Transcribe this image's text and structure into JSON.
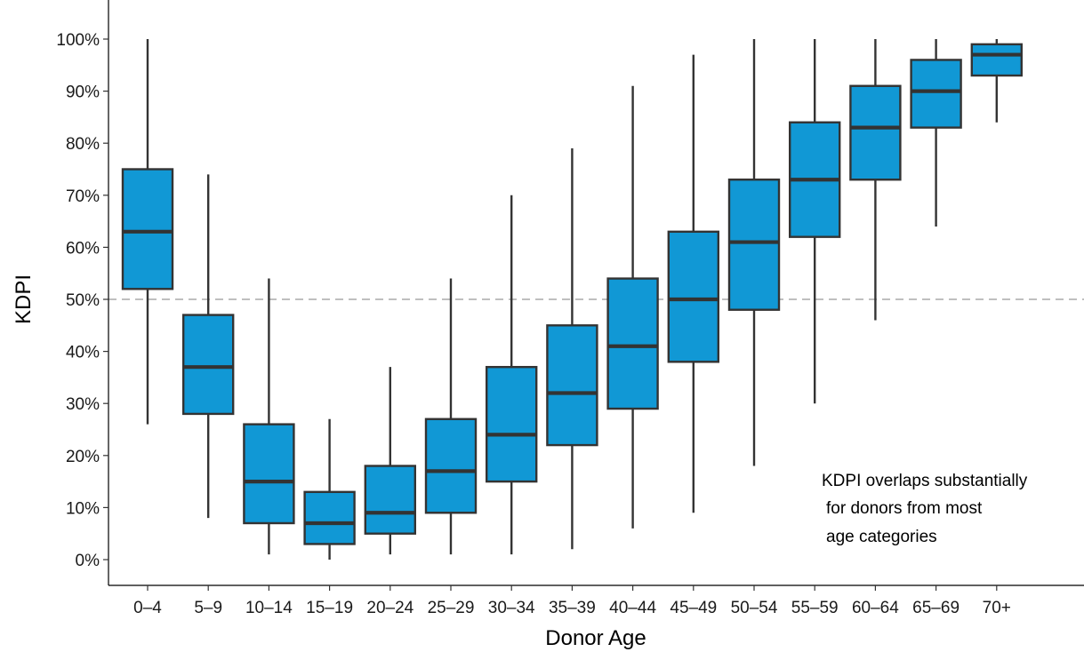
{
  "chart_data": {
    "type": "boxplot",
    "xlabel": "Donor Age",
    "ylabel": "KDPI",
    "ylim": [
      -5,
      105
    ],
    "yticks": [
      0,
      10,
      20,
      30,
      40,
      50,
      60,
      70,
      80,
      90,
      100
    ],
    "ytick_labels": [
      "0%",
      "10%",
      "20%",
      "30%",
      "40%",
      "50%",
      "60%",
      "70%",
      "80%",
      "90%",
      "100%"
    ],
    "reference_line": 50,
    "grid": false,
    "box_color": "#1198d5",
    "box_edge_color": "#333333",
    "reference_line_color": "#bfbfbf",
    "categories": [
      "0–4",
      "5–9",
      "10–14",
      "15–19",
      "20–24",
      "25–29",
      "30–34",
      "35–39",
      "40–44",
      "45–49",
      "50–54",
      "55–59",
      "60–64",
      "65–69",
      "70+"
    ],
    "boxes": [
      {
        "whisker_low": 26,
        "q1": 52,
        "median": 63,
        "q3": 75,
        "whisker_high": 100
      },
      {
        "whisker_low": 8,
        "q1": 28,
        "median": 37,
        "q3": 47,
        "whisker_high": 74
      },
      {
        "whisker_low": 1,
        "q1": 7,
        "median": 15,
        "q3": 26,
        "whisker_high": 54
      },
      {
        "whisker_low": 0,
        "q1": 3,
        "median": 7,
        "q3": 13,
        "whisker_high": 27
      },
      {
        "whisker_low": 1,
        "q1": 5,
        "median": 9,
        "q3": 18,
        "whisker_high": 37
      },
      {
        "whisker_low": 1,
        "q1": 9,
        "median": 17,
        "q3": 27,
        "whisker_high": 54
      },
      {
        "whisker_low": 1,
        "q1": 15,
        "median": 24,
        "q3": 37,
        "whisker_high": 70
      },
      {
        "whisker_low": 2,
        "q1": 22,
        "median": 32,
        "q3": 45,
        "whisker_high": 79
      },
      {
        "whisker_low": 6,
        "q1": 29,
        "median": 41,
        "q3": 54,
        "whisker_high": 91
      },
      {
        "whisker_low": 9,
        "q1": 38,
        "median": 50,
        "q3": 63,
        "whisker_high": 97
      },
      {
        "whisker_low": 18,
        "q1": 48,
        "median": 61,
        "q3": 73,
        "whisker_high": 100
      },
      {
        "whisker_low": 30,
        "q1": 62,
        "median": 73,
        "q3": 84,
        "whisker_high": 100
      },
      {
        "whisker_low": 46,
        "q1": 73,
        "median": 83,
        "q3": 91,
        "whisker_high": 100
      },
      {
        "whisker_low": 64,
        "q1": 83,
        "median": 90,
        "q3": 96,
        "whisker_high": 100
      },
      {
        "whisker_low": 84,
        "q1": 93,
        "median": 97,
        "q3": 99,
        "whisker_high": 100
      }
    ],
    "annotation": [
      "KDPI overlaps substantially",
      "for donors from most",
      "age categories"
    ]
  }
}
